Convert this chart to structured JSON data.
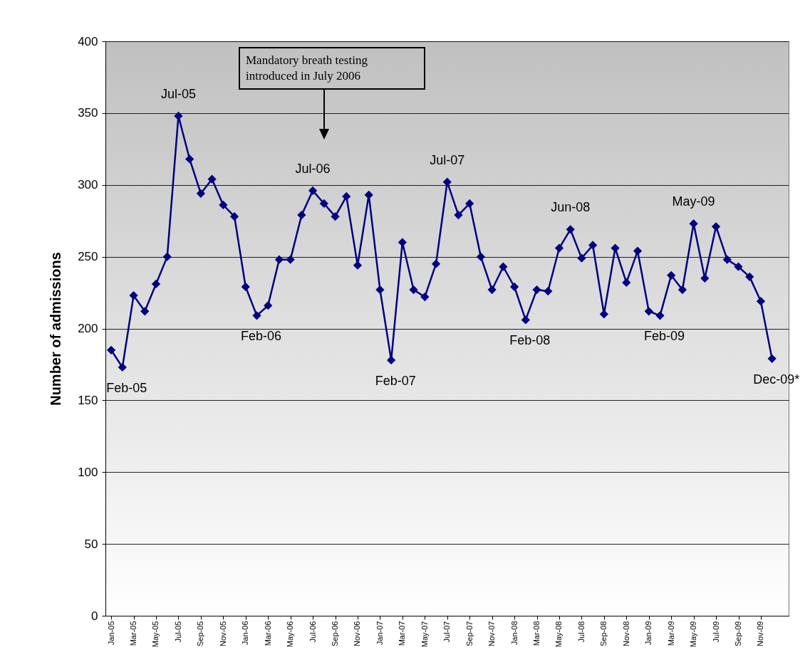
{
  "chart_data": {
    "type": "line",
    "ylabel": "Number of admissions",
    "x": [
      "2005-01",
      "2005-02",
      "2005-03",
      "2005-04",
      "2005-05",
      "2005-06",
      "2005-07",
      "2005-08",
      "2005-09",
      "2005-10",
      "2005-11",
      "2005-12",
      "2006-01",
      "2006-02",
      "2006-03",
      "2006-04",
      "2006-05",
      "2006-06",
      "2006-07",
      "2006-08",
      "2006-09",
      "2006-10",
      "2006-11",
      "2006-12",
      "2007-01",
      "2007-02",
      "2007-03",
      "2007-04",
      "2007-05",
      "2007-06",
      "2007-07",
      "2007-08",
      "2007-09",
      "2007-10",
      "2007-11",
      "2007-12",
      "2008-01",
      "2008-02",
      "2008-03",
      "2008-04",
      "2008-05",
      "2008-06",
      "2008-07",
      "2008-08",
      "2008-09",
      "2008-10",
      "2008-11",
      "2008-12",
      "2009-01",
      "2009-02",
      "2009-03",
      "2009-04",
      "2009-05",
      "2009-06",
      "2009-07",
      "2009-08",
      "2009-09",
      "2009-10",
      "2009-11",
      "2009-12"
    ],
    "series": [
      {
        "color": "#000080",
        "values": [
          185,
          173,
          223,
          212,
          231,
          250,
          348,
          318,
          294,
          304,
          286,
          278,
          229,
          209,
          216,
          248,
          248,
          279,
          296,
          287,
          278,
          292,
          244,
          293,
          227,
          178,
          260,
          227,
          222,
          245,
          302,
          279,
          287,
          250,
          227,
          243,
          229,
          206,
          227,
          226,
          256,
          269,
          249,
          258,
          210,
          256,
          232,
          254,
          212,
          209,
          237,
          227,
          273,
          235,
          271,
          248,
          243,
          236,
          219,
          179
        ]
      }
    ],
    "xlim": [
      "2004-12-16",
      "2010-01-16"
    ],
    "xticks": [
      {
        "value": "2005-01",
        "label": "Jan-05"
      },
      {
        "value": "2005-03",
        "label": "Mar-05"
      },
      {
        "value": "2005-05",
        "label": "May-05"
      },
      {
        "value": "2005-07",
        "label": "Jul-05"
      },
      {
        "value": "2005-09",
        "label": "Sep-05"
      },
      {
        "value": "2005-11",
        "label": "Nov-05"
      },
      {
        "value": "2006-01",
        "label": "Jan-06"
      },
      {
        "value": "2006-03",
        "label": "Mar-06"
      },
      {
        "value": "2006-05",
        "label": "May-06"
      },
      {
        "value": "2006-07",
        "label": "Jul-06"
      },
      {
        "value": "2006-09",
        "label": "Sep-06"
      },
      {
        "value": "2006-11",
        "label": "Nov-06"
      },
      {
        "value": "2007-01",
        "label": "Jan-07"
      },
      {
        "value": "2007-03",
        "label": "Mar-07"
      },
      {
        "value": "2007-05",
        "label": "May-07"
      },
      {
        "value": "2007-07",
        "label": "Jul-07"
      },
      {
        "value": "2007-09",
        "label": "Sep-07"
      },
      {
        "value": "2007-11",
        "label": "Nov-07"
      },
      {
        "value": "2008-01",
        "label": "Jan-08"
      },
      {
        "value": "2008-03",
        "label": "Mar-08"
      },
      {
        "value": "2008-05",
        "label": "May-08"
      },
      {
        "value": "2008-07",
        "label": "Jul-08"
      },
      {
        "value": "2008-09",
        "label": "Sep-08"
      },
      {
        "value": "2008-11",
        "label": "Nov-08"
      },
      {
        "value": "2009-01",
        "label": "Jan-09"
      },
      {
        "value": "2009-03",
        "label": "Mar-09"
      },
      {
        "value": "2009-05",
        "label": "May-09"
      },
      {
        "value": "2009-07",
        "label": "Jul-09"
      },
      {
        "value": "2009-09",
        "label": "Sep-09"
      },
      {
        "value": "2009-11",
        "label": "Nov-09"
      }
    ],
    "ylim": [
      0,
      400
    ],
    "yticks": [
      0,
      50,
      100,
      150,
      200,
      250,
      300,
      350,
      400
    ],
    "grid": "y",
    "marker": "diamond",
    "line_style": "solid",
    "annotations": [
      "Mandatory breath testing introduced in July 2006",
      {
        "text": "Feb-05",
        "x": "2005-02",
        "y": 173
      },
      {
        "text": "Jul-05",
        "x": "2005-07",
        "y": 348
      },
      {
        "text": "Feb-06",
        "x": "2006-02",
        "y": 209
      },
      {
        "text": "Jul-06",
        "x": "2006-07",
        "y": 296
      },
      {
        "text": "Feb-07",
        "x": "2007-02",
        "y": 178
      },
      {
        "text": "Jul-07",
        "x": "2007-07",
        "y": 302
      },
      {
        "text": "Feb-08",
        "x": "2008-02",
        "y": 206
      },
      {
        "text": "Jun-08",
        "x": "2008-06",
        "y": 269
      },
      {
        "text": "Feb-09",
        "x": "2009-02",
        "y": 209
      },
      {
        "text": "May-09",
        "x": "2009-05",
        "y": 273
      },
      {
        "text": "Dec-09*",
        "x": "2009-12",
        "y": 179
      }
    ]
  }
}
